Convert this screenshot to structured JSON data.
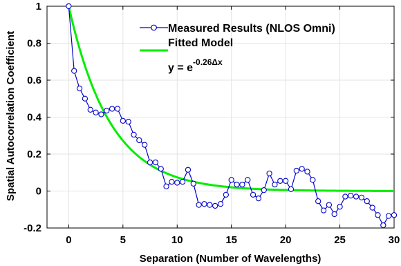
{
  "chart_data": {
    "type": "line",
    "xlabel": "Separation (Number of Wavelengths)",
    "ylabel": "Spatial Autocorrelation Coefficient",
    "xlim": [
      -2,
      30
    ],
    "ylim": [
      -0.2,
      1
    ],
    "xticks": [
      0,
      5,
      10,
      15,
      20,
      25,
      30
    ],
    "yticks": [
      -0.2,
      0,
      0.2,
      0.4,
      0.6,
      0.8,
      1
    ],
    "ytick_labels": [
      "-0.2",
      "0",
      "0.2",
      "0.4",
      "0.6",
      "0.8",
      "1"
    ],
    "grid": true,
    "legend_position": "top-right",
    "series": [
      {
        "name": "Measured Results (NLOS Omni)",
        "color": "#0000cc",
        "marker": "circle",
        "x": [
          0,
          0.5,
          1,
          1.5,
          2,
          2.5,
          3,
          3.5,
          4,
          4.5,
          5,
          5.5,
          6,
          6.5,
          7,
          7.5,
          8,
          8.5,
          9,
          9.5,
          10,
          10.5,
          11,
          11.5,
          12,
          12.5,
          13,
          13.5,
          14,
          14.5,
          15,
          15.5,
          16,
          16.5,
          17,
          17.5,
          18,
          18.5,
          19,
          19.5,
          20,
          20.5,
          21,
          21.5,
          22,
          22.5,
          23,
          23.5,
          24,
          24.5,
          25,
          25.5,
          26,
          26.5,
          27,
          27.5,
          28,
          28.5,
          29,
          29.5,
          30
        ],
        "y": [
          1.0,
          0.65,
          0.555,
          0.5,
          0.44,
          0.425,
          0.415,
          0.435,
          0.445,
          0.445,
          0.38,
          0.375,
          0.305,
          0.275,
          0.25,
          0.155,
          0.155,
          0.12,
          0.025,
          0.05,
          0.045,
          0.05,
          0.115,
          0.04,
          -0.075,
          -0.07,
          -0.075,
          -0.08,
          -0.07,
          -0.02,
          0.06,
          0.035,
          0.035,
          0.06,
          -0.02,
          -0.04,
          0.005,
          0.095,
          0.035,
          0.055,
          0.055,
          0.01,
          0.11,
          0.12,
          0.105,
          0.06,
          -0.055,
          -0.105,
          -0.075,
          -0.125,
          -0.085,
          -0.03,
          -0.025,
          -0.03,
          -0.035,
          -0.055,
          -0.09,
          -0.13,
          -0.185,
          -0.135,
          -0.13
        ]
      },
      {
        "name": "Fitted Model",
        "color": "#00ee00",
        "decay_rate": 0.26
      }
    ],
    "equation": {
      "base": "y = e",
      "exponent": "-0.26",
      "delta": "Δ",
      "variable": "x"
    }
  }
}
